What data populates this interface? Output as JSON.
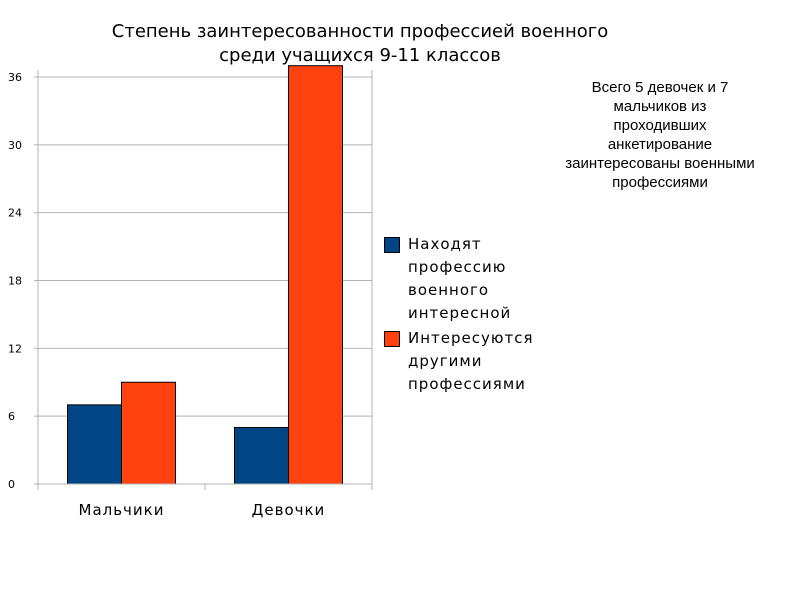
{
  "chart_data": {
    "type": "bar",
    "title_lines": [
      "Степень заинтересованности профессией военного",
      "среди учащихся 9-11 классов"
    ],
    "categories": [
      "Мальчики",
      "Девочки"
    ],
    "series": [
      {
        "name": "Находят профессию военного интересной",
        "values": [
          7,
          5
        ],
        "color": "#004586"
      },
      {
        "name": "Интересуются другими профессиями",
        "values": [
          9,
          37
        ],
        "color": "#ff420e"
      }
    ],
    "y_ticks": [
      "0",
      "6",
      "12",
      "18",
      "24",
      "30",
      "36"
    ],
    "ylim": [
      0,
      36
    ],
    "grid": true,
    "legend_position": "right"
  },
  "legend_lines": [
    [
      "Находят",
      "профессию",
      "военного",
      "интересной"
    ],
    [
      "Интересуются",
      "другими",
      "профессиями"
    ]
  ],
  "note_lines": [
    "Всего 5 девочек и 7",
    "мальчиков из",
    "проходивших",
    "анкетирование",
    "заинтересованы военными",
    "профессиями"
  ]
}
